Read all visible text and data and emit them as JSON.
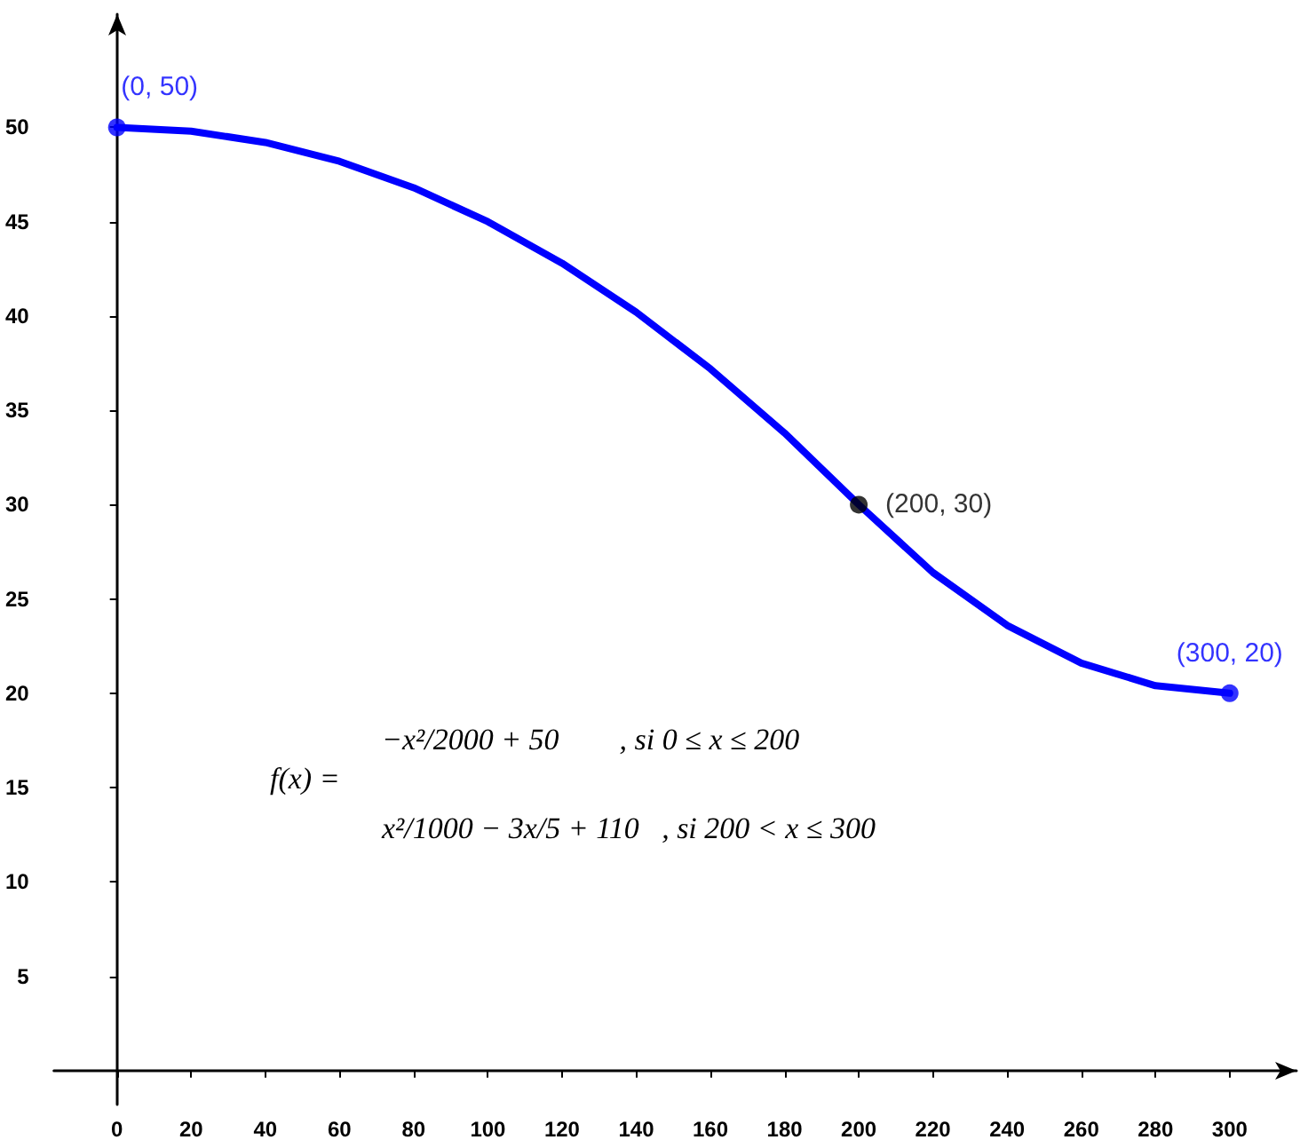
{
  "chart_data": {
    "type": "line",
    "x": [
      0,
      20,
      40,
      60,
      80,
      100,
      120,
      140,
      160,
      180,
      200,
      220,
      240,
      260,
      280,
      300
    ],
    "series": [
      {
        "color": "#0000ff",
        "values": [
          50,
          49.8,
          49.2,
          48.2,
          46.8,
          45,
          42.8,
          40.2,
          37.2,
          33.8,
          30,
          26.4,
          23.6,
          21.6,
          20.4,
          20
        ],
        "marker": "none"
      },
      {
        "type": "scatter",
        "x": [
          0,
          200,
          300
        ],
        "values": [
          50,
          30,
          20
        ],
        "colors": [
          "#0000ff",
          "#000000",
          "#0000ff"
        ],
        "value_labels": [
          "(0, 50)",
          "(200, 30)",
          "(300, 20)"
        ],
        "marker": "circle"
      }
    ],
    "xlim": [
      -17,
      318
    ],
    "xticks": [
      0,
      20,
      40,
      60,
      80,
      100,
      120,
      140,
      160,
      180,
      200,
      220,
      240,
      260,
      280,
      300
    ],
    "ylim": [
      -1.8,
      56
    ],
    "yticks": [
      5,
      10,
      15,
      20,
      25,
      30,
      35,
      40,
      45,
      50
    ],
    "annotations": [
      "f(x) =",
      "−x²/2000 + 50        , si 0 ≤ x ≤ 200",
      "x²/1000 − 3x/5 + 110   , si 200 < x ≤ 300"
    ]
  }
}
